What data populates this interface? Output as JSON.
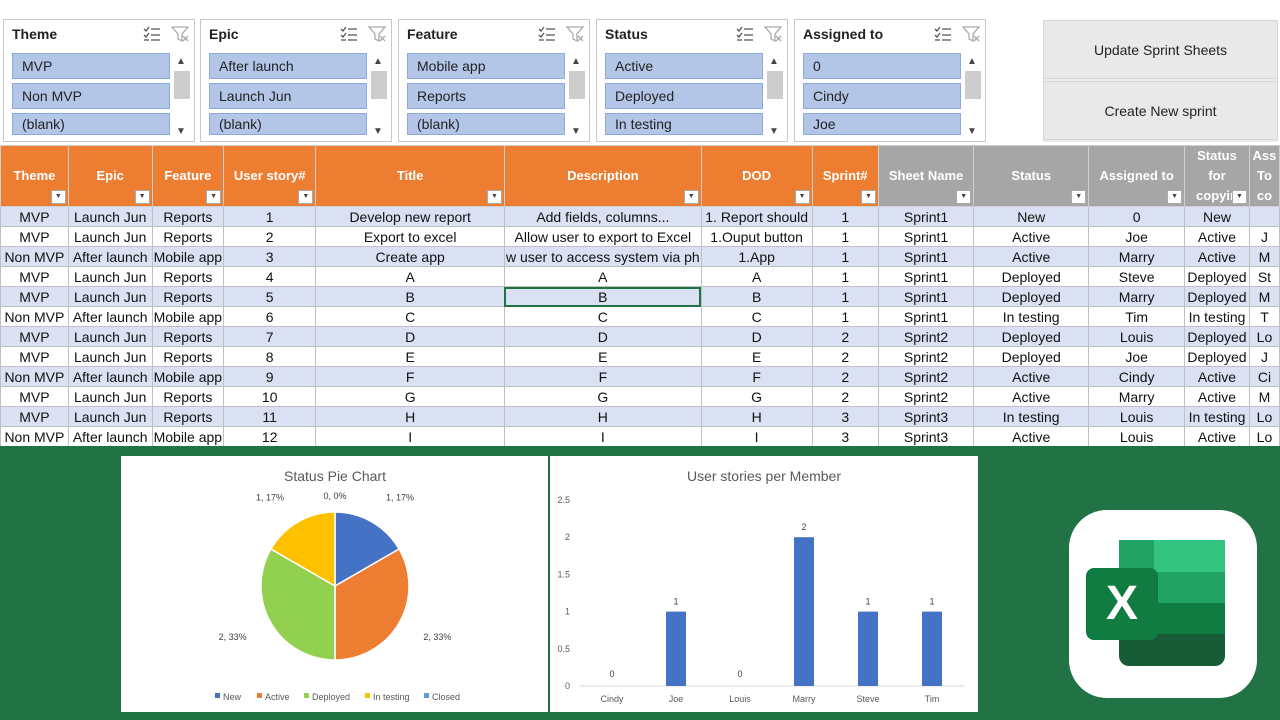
{
  "slicers": [
    {
      "title": "Theme",
      "items": [
        "MVP",
        "Non MVP",
        "(blank)"
      ]
    },
    {
      "title": "Epic",
      "items": [
        "After launch",
        "Launch Jun",
        "(blank)"
      ]
    },
    {
      "title": "Feature",
      "items": [
        "Mobile app",
        "Reports",
        "(blank)"
      ]
    },
    {
      "title": "Status",
      "items": [
        "Active",
        "Deployed",
        "In testing"
      ]
    },
    {
      "title": "Assigned to",
      "items": [
        "0",
        "Cindy",
        "Joe"
      ]
    }
  ],
  "buttons": {
    "update": "Update Sprint Sheets",
    "create": "Create New sprint"
  },
  "table": {
    "headers": [
      "Theme",
      "Epic",
      "Feature",
      "User story#",
      "Title",
      "Description",
      "DOD",
      "Sprint#",
      "Sheet Name",
      "Status",
      "Assigned to",
      "Status for copyin",
      "Ass To co"
    ],
    "rows": [
      [
        "MVP",
        "Launch Jun",
        "Reports",
        "1",
        "Develop new report",
        "Add fields, columns...",
        "1. Report should",
        "1",
        "Sprint1",
        "New",
        "0",
        "New",
        ""
      ],
      [
        "MVP",
        "Launch Jun",
        "Reports",
        "2",
        "Export to excel",
        "Allow user to export to Excel",
        "1.Ouput button",
        "1",
        "Sprint1",
        "Active",
        "Joe",
        "Active",
        "J"
      ],
      [
        "Non MVP",
        "After launch",
        "Mobile app",
        "3",
        "Create app",
        "w user to access system via ph",
        "1.App",
        "1",
        "Sprint1",
        "Active",
        "Marry",
        "Active",
        "M"
      ],
      [
        "MVP",
        "Launch Jun",
        "Reports",
        "4",
        "A",
        "A",
        "A",
        "1",
        "Sprint1",
        "Deployed",
        "Steve",
        "Deployed",
        "St"
      ],
      [
        "MVP",
        "Launch Jun",
        "Reports",
        "5",
        "B",
        "B",
        "B",
        "1",
        "Sprint1",
        "Deployed",
        "Marry",
        "Deployed",
        "M"
      ],
      [
        "Non MVP",
        "After launch",
        "Mobile app",
        "6",
        "C",
        "C",
        "C",
        "1",
        "Sprint1",
        "In testing",
        "Tim",
        "In testing",
        "T"
      ],
      [
        "MVP",
        "Launch Jun",
        "Reports",
        "7",
        "D",
        "D",
        "D",
        "2",
        "Sprint2",
        "Deployed",
        "Louis",
        "Deployed",
        "Lo"
      ],
      [
        "MVP",
        "Launch Jun",
        "Reports",
        "8",
        "E",
        "E",
        "E",
        "2",
        "Sprint2",
        "Deployed",
        "Joe",
        "Deployed",
        "J"
      ],
      [
        "Non MVP",
        "After launch",
        "Mobile app",
        "9",
        "F",
        "F",
        "F",
        "2",
        "Sprint2",
        "Active",
        "Cindy",
        "Active",
        "Ci"
      ],
      [
        "MVP",
        "Launch Jun",
        "Reports",
        "10",
        "G",
        "G",
        "G",
        "2",
        "Sprint2",
        "Active",
        "Marry",
        "Active",
        "M"
      ],
      [
        "MVP",
        "Launch Jun",
        "Reports",
        "11",
        "H",
        "H",
        "H",
        "3",
        "Sprint3",
        "In testing",
        "Louis",
        "In testing",
        "Lo"
      ],
      [
        "Non MVP",
        "After launch",
        "Mobile app",
        "12",
        "I",
        "I",
        "I",
        "3",
        "Sprint3",
        "Active",
        "Louis",
        "Active",
        "Lo"
      ]
    ]
  },
  "chart_data": [
    {
      "type": "pie",
      "title": "Status Pie Chart",
      "categories": [
        "New",
        "Active",
        "Deployed",
        "In testing",
        "Closed"
      ],
      "values": [
        1,
        2,
        2,
        1,
        0
      ],
      "labels": [
        "1, 17%",
        "2, 33%",
        "2, 33%",
        "1, 17%",
        "0, 0%"
      ],
      "colors": [
        "#4472c4",
        "#ed7d31",
        "#92d050",
        "#ffc000",
        "#5b9bd5"
      ],
      "legend": "bottom"
    },
    {
      "type": "bar",
      "title": "User stories per Member",
      "categories": [
        "Cindy",
        "Joe",
        "Louis",
        "Marry",
        "Steve",
        "Tim"
      ],
      "values": [
        0,
        1,
        0,
        2,
        1,
        1
      ],
      "ylim": [
        0,
        2.5
      ],
      "yticks": [
        "0",
        "0.5",
        "1",
        "1.5",
        "2",
        "2.5"
      ],
      "color": "#4472c4",
      "grid": false
    }
  ],
  "colors": {
    "background": "#217346",
    "header_orange": "#ed7d31",
    "header_gray": "#a6a6a6",
    "band": "#d9e1f2",
    "slicer_item": "#b4c6e7"
  },
  "logo": {
    "letter": "X"
  }
}
